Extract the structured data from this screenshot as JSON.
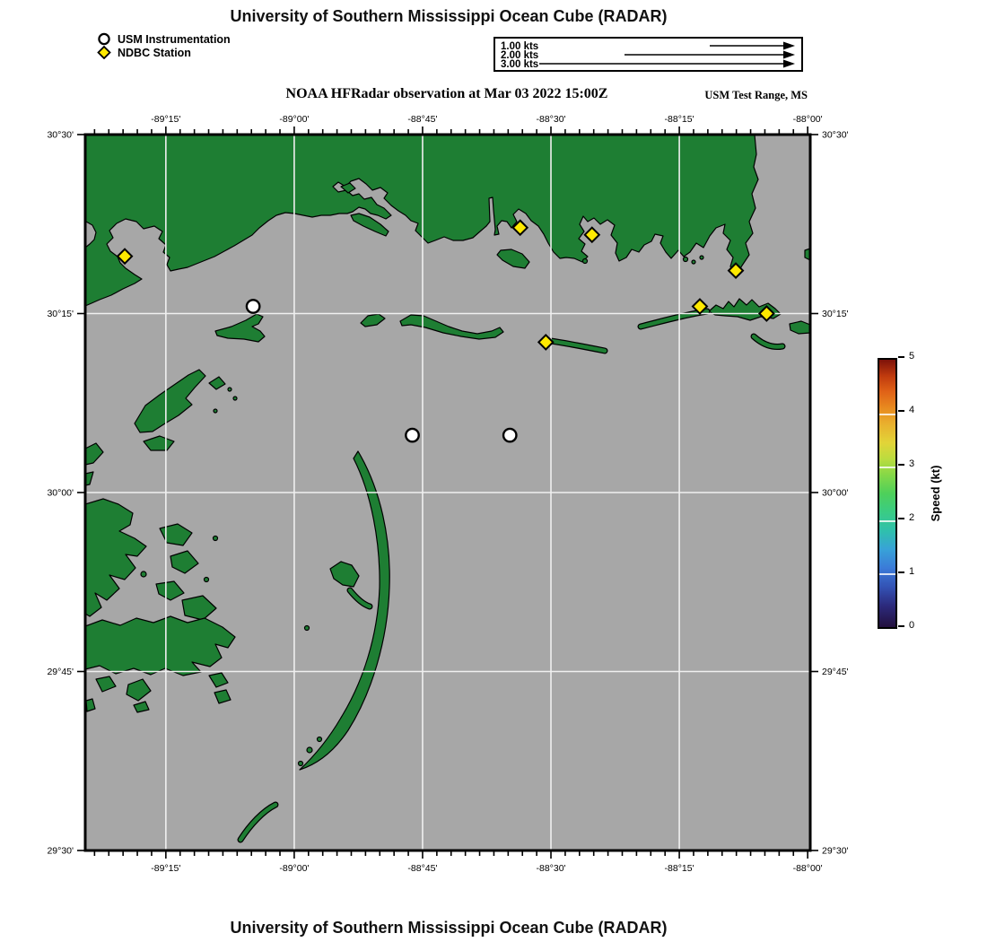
{
  "header": {
    "title": "University of Southern Mississippi Ocean Cube (RADAR)"
  },
  "footer": {
    "title": "University of Southern Mississippi Ocean Cube (RADAR)"
  },
  "legend": {
    "items": [
      {
        "symbol": "circle-icon",
        "label": "USM Instrumentation"
      },
      {
        "symbol": "diamond-icon",
        "label": "NDBC Station"
      }
    ]
  },
  "scale_box": {
    "entries": [
      {
        "label": "1.00 kts",
        "kts": 1
      },
      {
        "label": "2.00 kts",
        "kts": 2
      },
      {
        "label": "3.00 kts",
        "kts": 3
      }
    ]
  },
  "subtitle": {
    "observation": "NOAA HFRadar observation at Mar 03 2022 15:00Z",
    "region": "USM Test Range, MS"
  },
  "map": {
    "lon_range": [
      -89.407,
      -87.995
    ],
    "lat_range": [
      29.5,
      30.5
    ],
    "lon_ticks": [
      {
        "value": -89.25,
        "label": "-89°15'"
      },
      {
        "value": -89.0,
        "label": "-89°00'"
      },
      {
        "value": -88.75,
        "label": "-88°45'"
      },
      {
        "value": -88.5,
        "label": "-88°30'"
      },
      {
        "value": -88.25,
        "label": "-88°15'"
      },
      {
        "value": -88.0,
        "label": "-88°00'"
      }
    ],
    "lat_ticks": [
      {
        "value": 30.5,
        "label": "30°30'"
      },
      {
        "value": 30.25,
        "label": "30°15'"
      },
      {
        "value": 30.0,
        "label": "30°00'"
      },
      {
        "value": 29.75,
        "label": "29°45'"
      },
      {
        "value": 29.5,
        "label": "29°30'"
      }
    ],
    "minor_per_major": 9,
    "colors": {
      "water": "#a7a7a7",
      "land": "#1e7e33",
      "coastline": "#000000",
      "gridline": "#f0f0f0",
      "frame": "#000000"
    },
    "stations": {
      "usm_instrumentation": [
        {
          "lon": -89.08,
          "lat": 30.26
        },
        {
          "lon": -88.77,
          "lat": 30.08
        },
        {
          "lon": -88.58,
          "lat": 30.08
        }
      ],
      "ndbc": [
        {
          "lon": -89.33,
          "lat": 30.33
        },
        {
          "lon": -88.56,
          "lat": 30.37
        },
        {
          "lon": -88.42,
          "lat": 30.36
        },
        {
          "lon": -88.14,
          "lat": 30.31
        },
        {
          "lon": -88.21,
          "lat": 30.26
        },
        {
          "lon": -88.08,
          "lat": 30.25
        },
        {
          "lon": -88.51,
          "lat": 30.21
        }
      ],
      "marker_colors": {
        "usm": "#ffffff",
        "ndbc": "#ffe900"
      }
    }
  },
  "colorbar": {
    "label": "Speed (kt)",
    "min": 0,
    "max": 5,
    "ticks": [
      "0",
      "1",
      "2",
      "3",
      "4",
      "5"
    ],
    "gridline_values": [
      1,
      2,
      3,
      4
    ],
    "gradient_bottom_to_top": [
      [
        "0%",
        "#23103e"
      ],
      [
        "8%",
        "#2c2a7c"
      ],
      [
        "15%",
        "#3352b4"
      ],
      [
        "22%",
        "#3b7ad8"
      ],
      [
        "29%",
        "#38a2d8"
      ],
      [
        "36%",
        "#2fc0ac"
      ],
      [
        "43%",
        "#3acc84"
      ],
      [
        "50%",
        "#4ed05a"
      ],
      [
        "57%",
        "#86d847"
      ],
      [
        "63%",
        "#bcdc3f"
      ],
      [
        "69%",
        "#e2d438"
      ],
      [
        "76%",
        "#e9b02e"
      ],
      [
        "82%",
        "#e88a1f"
      ],
      [
        "88%",
        "#e06217"
      ],
      [
        "94%",
        "#bf3a0e"
      ],
      [
        "100%",
        "#7d120a"
      ]
    ]
  }
}
